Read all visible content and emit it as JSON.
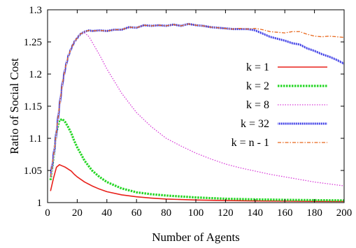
{
  "chart_data": {
    "type": "line",
    "title": "",
    "xlabel": "Number of Agents",
    "ylabel": "Ratio of Social Cost",
    "xlim": [
      0,
      200
    ],
    "ylim": [
      1,
      1.3
    ],
    "xticks": [
      0,
      20,
      40,
      60,
      80,
      100,
      120,
      140,
      160,
      180,
      200
    ],
    "yticks": [
      1,
      1.05,
      1.1,
      1.15,
      1.2,
      1.25,
      1.3
    ],
    "ytick_labels": [
      "1",
      "1.05",
      "1.1",
      "1.15",
      "1.2",
      "1.25",
      "1.3"
    ],
    "grid": false,
    "legend_position": "right",
    "series": [
      {
        "name": "k = 1",
        "color": "#e8201a",
        "style": "solid",
        "x": [
          2,
          4,
          6,
          8,
          10,
          12,
          14,
          16,
          18,
          20,
          25,
          30,
          35,
          40,
          50,
          60,
          70,
          80,
          100,
          120,
          140,
          160,
          180,
          200
        ],
        "y": [
          1.018,
          1.038,
          1.055,
          1.059,
          1.057,
          1.055,
          1.052,
          1.049,
          1.044,
          1.04,
          1.032,
          1.026,
          1.021,
          1.017,
          1.012,
          1.009,
          1.007,
          1.0055,
          1.004,
          1.0032,
          1.0027,
          1.0023,
          1.002,
          1.0018
        ]
      },
      {
        "name": "k = 2",
        "color": "#26d626",
        "style": "dotted-thick",
        "x": [
          2,
          4,
          6,
          8,
          10,
          12,
          14,
          16,
          18,
          20,
          25,
          30,
          35,
          40,
          50,
          60,
          70,
          80,
          100,
          120,
          140,
          160,
          180,
          200
        ],
        "y": [
          1.035,
          1.07,
          1.11,
          1.128,
          1.13,
          1.125,
          1.117,
          1.108,
          1.096,
          1.086,
          1.065,
          1.05,
          1.04,
          1.032,
          1.022,
          1.016,
          1.013,
          1.011,
          1.008,
          1.006,
          1.005,
          1.0043,
          1.0038,
          1.0034
        ]
      },
      {
        "name": "k = 8",
        "color": "#d83cd8",
        "style": "dotted",
        "x": [
          2,
          5,
          8,
          10,
          12,
          14,
          16,
          18,
          20,
          22,
          25,
          28,
          30,
          35,
          40,
          50,
          60,
          70,
          80,
          90,
          100,
          110,
          120,
          130,
          140,
          150,
          160,
          170,
          180,
          190,
          200
        ],
        "y": [
          1.04,
          1.09,
          1.15,
          1.185,
          1.21,
          1.228,
          1.24,
          1.25,
          1.256,
          1.262,
          1.264,
          1.258,
          1.25,
          1.23,
          1.208,
          1.17,
          1.14,
          1.118,
          1.1,
          1.088,
          1.077,
          1.068,
          1.06,
          1.054,
          1.049,
          1.044,
          1.04,
          1.036,
          1.032,
          1.029,
          1.026
        ]
      },
      {
        "name": "k = 32",
        "color": "#3a3ae0",
        "style": "hatched",
        "x": [
          2,
          5,
          8,
          10,
          12,
          14,
          16,
          18,
          20,
          22,
          25,
          28,
          30,
          35,
          40,
          45,
          50,
          55,
          60,
          65,
          70,
          75,
          80,
          85,
          90,
          95,
          100,
          105,
          110,
          115,
          120,
          125,
          130,
          135,
          140,
          145,
          150,
          155,
          160,
          165,
          170,
          175,
          180,
          185,
          190,
          195,
          200
        ],
        "y": [
          1.04,
          1.09,
          1.15,
          1.185,
          1.21,
          1.228,
          1.24,
          1.25,
          1.256,
          1.262,
          1.266,
          1.268,
          1.267,
          1.268,
          1.267,
          1.269,
          1.269,
          1.273,
          1.272,
          1.276,
          1.275,
          1.276,
          1.275,
          1.277,
          1.275,
          1.278,
          1.276,
          1.275,
          1.273,
          1.272,
          1.271,
          1.27,
          1.27,
          1.27,
          1.268,
          1.263,
          1.258,
          1.255,
          1.252,
          1.248,
          1.246,
          1.24,
          1.236,
          1.231,
          1.227,
          1.222,
          1.216
        ]
      },
      {
        "name": "k = n - 1",
        "color": "#e8661a",
        "style": "dash-dot",
        "x": [
          2,
          5,
          8,
          10,
          12,
          14,
          16,
          18,
          20,
          22,
          25,
          28,
          30,
          35,
          40,
          45,
          50,
          55,
          60,
          65,
          70,
          75,
          80,
          85,
          90,
          95,
          100,
          105,
          110,
          115,
          120,
          125,
          130,
          135,
          140,
          145,
          150,
          155,
          160,
          165,
          170,
          175,
          180,
          185,
          190,
          195,
          200
        ],
        "y": [
          1.04,
          1.09,
          1.15,
          1.185,
          1.21,
          1.228,
          1.24,
          1.25,
          1.256,
          1.262,
          1.266,
          1.268,
          1.267,
          1.268,
          1.267,
          1.269,
          1.269,
          1.273,
          1.272,
          1.276,
          1.275,
          1.276,
          1.275,
          1.277,
          1.275,
          1.278,
          1.276,
          1.275,
          1.273,
          1.272,
          1.271,
          1.27,
          1.271,
          1.27,
          1.271,
          1.269,
          1.266,
          1.265,
          1.264,
          1.266,
          1.266,
          1.262,
          1.259,
          1.258,
          1.259,
          1.258,
          1.257
        ]
      }
    ]
  }
}
